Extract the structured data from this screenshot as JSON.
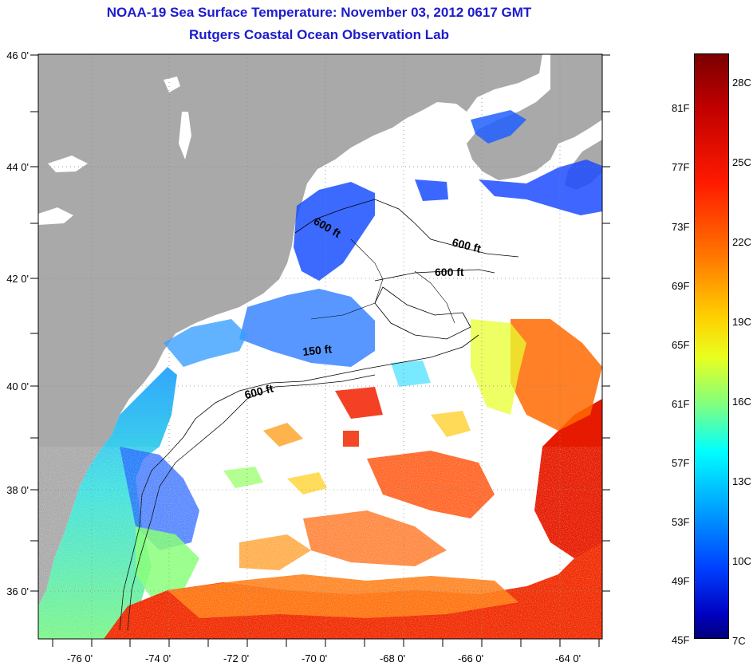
{
  "title": "NOAA-19 Sea Surface Temperature:  November 03, 2012 0617 GMT",
  "subtitle": "Rutgers Coastal Ocean Observation Lab",
  "map": {
    "lat_labels": [
      "46 0'",
      "44 0'",
      "42 0'",
      "40 0'",
      "38 0'",
      "36 0'"
    ],
    "lon_labels": [
      "-76 0'",
      "-74 0'",
      "-72 0'",
      "-70 0'",
      "-68 0'",
      "-66 0'",
      "-64 0'"
    ],
    "contour_labels": [
      "600 ft",
      "600 ft",
      "600 ft",
      "150 ft",
      "600 ft"
    ],
    "colors": {
      "land": "#a9a9a9",
      "cloud": "#ffffff",
      "frame": "#000000"
    }
  },
  "colorbar": {
    "f_labels": [
      "81F",
      "77F",
      "73F",
      "69F",
      "65F",
      "61F",
      "57F",
      "53F",
      "49F",
      "45F"
    ],
    "c_labels": [
      "28C",
      "25C",
      "22C",
      "19C",
      "16C",
      "13C",
      "10C",
      "7C"
    ]
  }
}
